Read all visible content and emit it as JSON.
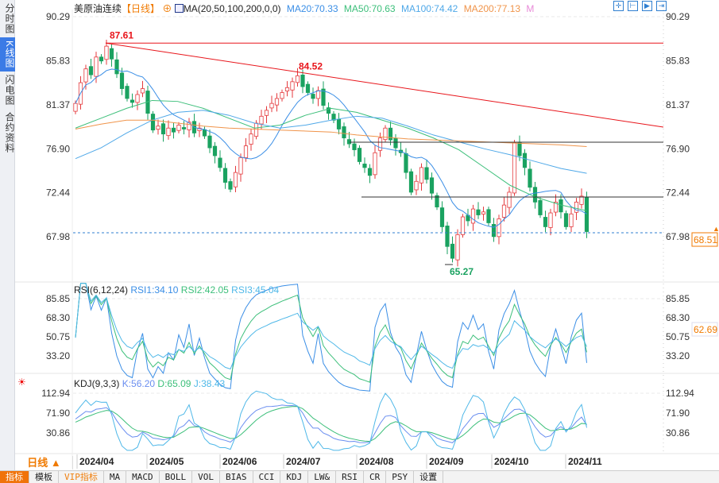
{
  "left_tabs": [
    "分时图",
    "K线图",
    "闪电图",
    "合约资料"
  ],
  "header": {
    "instrument": "美原油连续",
    "period_tag": "【日线】",
    "ma_label": "MA(20,50,100,200,0,0)",
    "ma20": "MA20:70.33",
    "ma50": "MA50:70.63",
    "ma100": "MA100:74.42",
    "ma200": "MA200:77.13",
    "more": "M"
  },
  "toolbar_icons": [
    "crosshair-icon",
    "zoom-in-icon",
    "zoom-out-icon",
    "move-right-icon"
  ],
  "colors": {
    "up": "#e4393c",
    "down": "#1aa260",
    "ma20": "#3a8ee6",
    "ma50": "#3cbf7a",
    "ma100": "#4fa8e8",
    "ma200": "#f0944a",
    "trend": "#e8151b",
    "accent": "#f07a00"
  },
  "price_axis": [
    "90.29",
    "85.83",
    "81.37",
    "76.90",
    "72.44",
    "67.98"
  ],
  "last_price": "68.51",
  "annotations": {
    "high": "87.61",
    "mid_high": "84.52",
    "low": "65.27"
  },
  "rsi": {
    "label": "RSI(6,12,24)",
    "rsi1": "RSI1:34.10",
    "rsi2": "RSI2:42.05",
    "rsi3": "RSI3:45.04",
    "axis": [
      "85.85",
      "68.30",
      "50.75",
      "33.20"
    ],
    "marker": "62.69"
  },
  "kdj": {
    "label": "KDJ(9,3,3)",
    "k": "K:56.20",
    "d": "D:65.09",
    "j": "J:38.43",
    "axis": [
      "112.94",
      "71.90",
      "30.86"
    ]
  },
  "period_button": "日线 ▲",
  "date_axis": [
    "2024/04",
    "2024/05",
    "2024/06",
    "2024/07",
    "2024/08",
    "2024/09",
    "2024/10",
    "2024/11"
  ],
  "bottom_tabs": [
    "指标",
    "模板",
    "VIP指标",
    "MA",
    "MACD",
    "BOLL",
    "VOL",
    "BIAS",
    "CCI",
    "KDJ",
    "LW&",
    "RSI",
    "CR",
    "PSY",
    "设置"
  ],
  "chart_data": {
    "type": "candlestick",
    "title": "美原油连续 日线",
    "ylim": [
      65,
      90.29
    ],
    "closes": [
      81.5,
      83.6,
      85.0,
      84.4,
      86.2,
      85.8,
      87.3,
      86.0,
      84.5,
      83.0,
      82.0,
      81.6,
      82.4,
      83.0,
      80.5,
      78.8,
      79.2,
      78.4,
      79.0,
      78.6,
      79.3,
      78.9,
      79.6,
      78.5,
      79.0,
      78.2,
      77.0,
      76.2,
      75.0,
      73.5,
      72.8,
      74.5,
      76.0,
      77.2,
      78.4,
      79.5,
      80.2,
      80.8,
      81.5,
      82.0,
      82.6,
      83.1,
      83.7,
      84.3,
      83.2,
      82.6,
      82.0,
      82.8,
      81.3,
      80.5,
      79.8,
      78.9,
      78.0,
      77.4,
      76.8,
      75.6,
      75.0,
      74.2,
      76.5,
      78.0,
      79.0,
      77.8,
      77.0,
      76.5,
      74.5,
      72.5,
      73.6,
      75.0,
      73.8,
      72.4,
      71.0,
      69.0,
      67.0,
      65.8,
      68.2,
      70.0,
      69.6,
      70.8,
      70.2,
      70.5,
      69.4,
      68.0,
      69.8,
      71.2,
      72.5,
      77.5,
      76.2,
      75.0,
      73.0,
      71.5,
      70.2,
      69.0,
      70.4,
      71.5,
      70.5,
      69.0,
      70.3,
      71.5,
      72.1,
      68.51
    ],
    "ma100": [
      75.9,
      77.0,
      78.5,
      79.8,
      80.6,
      80.8,
      80.3,
      79.5,
      79.0,
      79.3,
      79.8,
      80.2,
      80.0,
      79.2,
      78.3,
      77.6,
      76.9,
      76.3,
      75.6,
      74.9,
      74.42
    ],
    "ma200": [
      78.9,
      79.4,
      79.8,
      79.8,
      79.5,
      79.2,
      79.0,
      78.9,
      78.8,
      78.7,
      78.6,
      78.3,
      78.1,
      77.9,
      77.8,
      77.7,
      77.6,
      77.5,
      77.4,
      77.3,
      77.13
    ],
    "ma50": [
      79.0,
      80.0,
      81.0,
      81.8,
      81.7,
      81.0,
      80.0,
      79.0,
      79.3,
      80.3,
      81.0,
      80.6,
      79.8,
      79.0,
      78.0,
      76.8,
      75.0,
      73.2,
      72.0,
      71.2,
      70.63
    ]
  }
}
